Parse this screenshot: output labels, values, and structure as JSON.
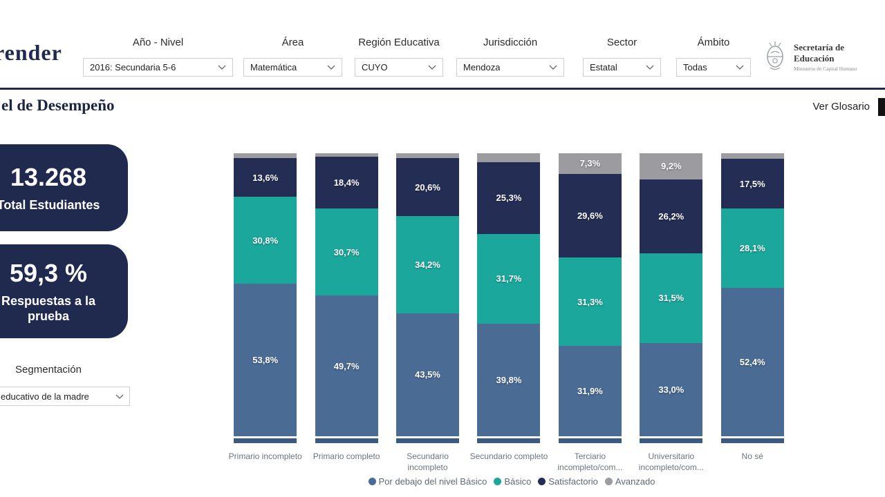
{
  "header": {
    "logo_text": "render",
    "filters": [
      {
        "label": "Año - Nivel",
        "value": "2016: Secundaria 5-6"
      },
      {
        "label": "Área",
        "value": "Matemática"
      },
      {
        "label": "Región Educativa",
        "value": "CUYO"
      },
      {
        "label": "Jurisdicción",
        "value": "Mendoza"
      },
      {
        "label": "Sector",
        "value": "Estatal"
      },
      {
        "label": "Ámbito",
        "value": "Todas"
      }
    ],
    "org_logo": {
      "emblem_icon": "argentina-coat-of-arms",
      "title": "Secretaría de Educación",
      "subtitle": "Ministerio de Capital Humano"
    }
  },
  "page": {
    "title": "el de Desempeño",
    "glossary_link": "Ver Glosario"
  },
  "kpis": [
    {
      "value": "13.268",
      "label": "Total Estudiantes"
    },
    {
      "value": "59,3 %",
      "label": "Respuestas a la prueba"
    }
  ],
  "segmentation": {
    "label": "Segmentación",
    "value": "educativo de la madre"
  },
  "chart_data": {
    "type": "bar",
    "stacked": true,
    "percent_scale": true,
    "ylim": [
      0,
      100
    ],
    "grid": false,
    "legend_position": "bottom",
    "xlabel": "",
    "ylabel": "",
    "categories": [
      "Primario incompleto",
      "Primario completo",
      "Secundario incompleto",
      "Secundario completo",
      "Terciario incompleto/com...",
      "Universitario incompleto/com...",
      "No sé"
    ],
    "series": [
      {
        "name": "Por debajo del nivel Básico",
        "color": "#4a6b94",
        "values": [
          53.8,
          49.7,
          43.5,
          39.8,
          31.9,
          33.0,
          52.4
        ],
        "labels": [
          "53,8%",
          "49,7%",
          "43,5%",
          "39,8%",
          "31,9%",
          "33,0%",
          "52,4%"
        ]
      },
      {
        "name": "Básico",
        "color": "#1ba79c",
        "values": [
          30.8,
          30.7,
          34.2,
          31.7,
          31.3,
          31.5,
          28.1
        ],
        "labels": [
          "30,8%",
          "30,7%",
          "34,2%",
          "31,7%",
          "31,3%",
          "31,5%",
          "28,1%"
        ]
      },
      {
        "name": "Satisfactorio",
        "color": "#242e54",
        "values": [
          13.6,
          18.4,
          20.6,
          25.3,
          29.6,
          26.2,
          17.5
        ],
        "labels": [
          "13,6%",
          "18,4%",
          "20,6%",
          "25,3%",
          "29,6%",
          "26,2%",
          "17,5%"
        ]
      },
      {
        "name": "Avanzado",
        "color": "#9b9ba0",
        "values": [
          1.8,
          1.2,
          1.7,
          3.2,
          7.3,
          9.2,
          2.0
        ],
        "labels": [
          "",
          "",
          "",
          "",
          "7,3%",
          "9,2%",
          ""
        ]
      }
    ]
  }
}
